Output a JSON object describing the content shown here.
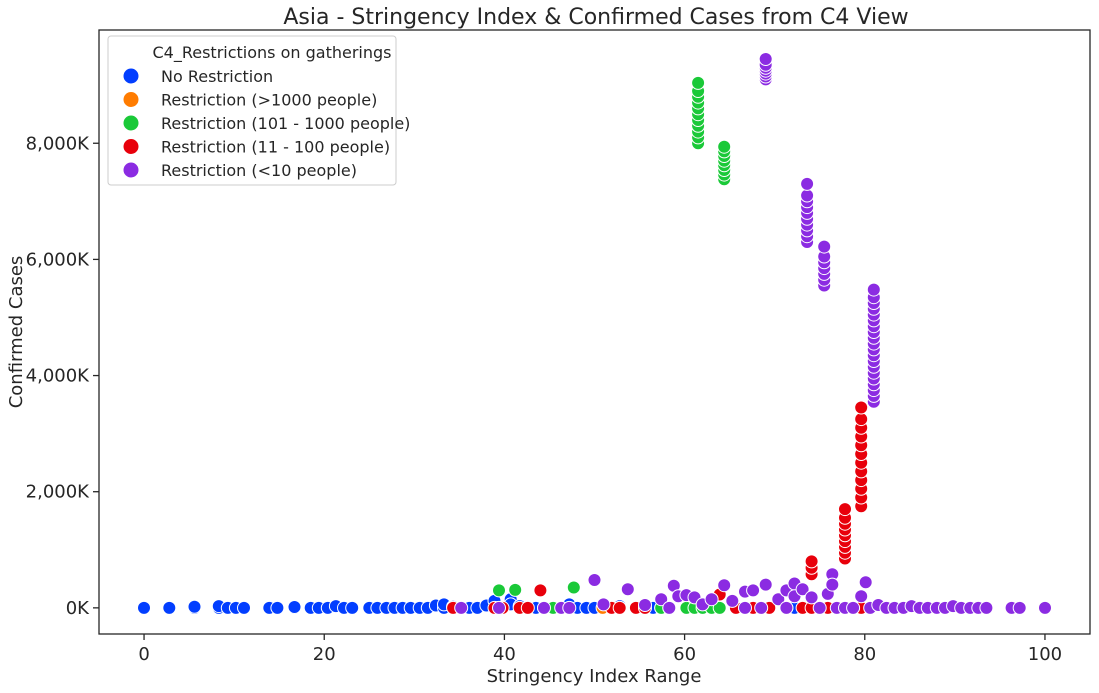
{
  "chart_data": {
    "type": "scatter",
    "title": "Asia - Stringency Index & Confirmed Cases from C4 View",
    "xlabel": "Stringency Index Range",
    "ylabel": "Confirmed Cases",
    "xlim": [
      -5,
      105
    ],
    "ylim": [
      -450000,
      9950000
    ],
    "xticks": [
      0,
      20,
      40,
      60,
      80,
      100
    ],
    "yticks": [
      0,
      2000000,
      4000000,
      6000000,
      8000000
    ],
    "ytick_labels": [
      "0K",
      "2,000K",
      "4,000K",
      "6,000K",
      "8,000K"
    ],
    "grid": false,
    "legend": {
      "title": "C4_Restrictions on gatherings",
      "placement": "top-left"
    },
    "series": [
      {
        "name": "No Restriction",
        "color": "#023eff",
        "points": [
          [
            0,
            0
          ],
          [
            2.8,
            0
          ],
          [
            5.6,
            0
          ],
          [
            5.6,
            20000
          ],
          [
            8.3,
            0
          ],
          [
            8.3,
            30000
          ],
          [
            9.3,
            0
          ],
          [
            10.2,
            0
          ],
          [
            11.1,
            0
          ],
          [
            13.9,
            0
          ],
          [
            14.8,
            0
          ],
          [
            16.7,
            0
          ],
          [
            16.7,
            15000
          ],
          [
            18.5,
            0
          ],
          [
            19.4,
            0
          ],
          [
            20.4,
            0
          ],
          [
            21.3,
            30000
          ],
          [
            22.2,
            0
          ],
          [
            23.1,
            0
          ],
          [
            25.0,
            0
          ],
          [
            25.9,
            0
          ],
          [
            26.9,
            0
          ],
          [
            27.8,
            0
          ],
          [
            28.7,
            0
          ],
          [
            29.6,
            0
          ],
          [
            30.6,
            0
          ],
          [
            31.5,
            0
          ],
          [
            32.4,
            40000
          ],
          [
            33.3,
            0
          ],
          [
            33.3,
            60000
          ],
          [
            34.3,
            20000
          ],
          [
            36.1,
            0
          ],
          [
            37.0,
            0
          ],
          [
            38.0,
            40000
          ],
          [
            38.9,
            120000
          ],
          [
            40.7,
            150000
          ],
          [
            40.7,
            60000
          ],
          [
            41.7,
            30000
          ],
          [
            43.5,
            0
          ],
          [
            44.4,
            0
          ],
          [
            45.4,
            0
          ],
          [
            46.3,
            0
          ],
          [
            47.2,
            60000
          ],
          [
            48.1,
            0
          ],
          [
            49.1,
            0
          ],
          [
            50.0,
            0
          ],
          [
            51.9,
            0
          ],
          [
            52.8,
            30000
          ],
          [
            54.6,
            0
          ],
          [
            55.6,
            0
          ],
          [
            56.5,
            0
          ],
          [
            57.4,
            0
          ],
          [
            58.3,
            0
          ],
          [
            61.1,
            0
          ],
          [
            62.0,
            0
          ],
          [
            63.9,
            0
          ],
          [
            72.2,
            0
          ]
        ]
      },
      {
        "name": "Restriction (>1000 people)",
        "color": "#ff7c00",
        "points": [
          [
            45.4,
            0
          ],
          [
            50.9,
            0
          ]
        ]
      },
      {
        "name": "Restriction (101 - 1000 people)",
        "color": "#1ac938",
        "points": [
          [
            39.4,
            300000
          ],
          [
            41.2,
            310000
          ],
          [
            45.4,
            0
          ],
          [
            47.7,
            350000
          ],
          [
            52.8,
            0
          ],
          [
            57.4,
            0
          ],
          [
            58.3,
            0
          ],
          [
            60.2,
            0
          ],
          [
            61.1,
            0
          ],
          [
            62.0,
            0
          ],
          [
            63.0,
            0
          ],
          [
            63.9,
            0
          ],
          [
            61.5,
            8000000
          ],
          [
            61.5,
            8100000
          ],
          [
            61.5,
            8200000
          ],
          [
            61.5,
            8300000
          ],
          [
            61.5,
            8400000
          ],
          [
            61.5,
            8500000
          ],
          [
            61.5,
            8600000
          ],
          [
            61.5,
            8700000
          ],
          [
            61.5,
            8800000
          ],
          [
            61.5,
            8900000
          ],
          [
            61.5,
            9040000
          ],
          [
            64.4,
            7380000
          ],
          [
            64.4,
            7460000
          ],
          [
            64.4,
            7540000
          ],
          [
            64.4,
            7620000
          ],
          [
            64.4,
            7700000
          ],
          [
            64.4,
            7780000
          ],
          [
            64.4,
            7860000
          ],
          [
            64.4,
            7940000
          ]
        ]
      },
      {
        "name": "Restriction (11 - 100 people)",
        "color": "#e8000b",
        "points": [
          [
            34.3,
            0
          ],
          [
            38.9,
            0
          ],
          [
            39.8,
            0
          ],
          [
            41.7,
            0
          ],
          [
            42.6,
            0
          ],
          [
            44.0,
            300000
          ],
          [
            51.9,
            0
          ],
          [
            52.8,
            0
          ],
          [
            54.6,
            0
          ],
          [
            55.6,
            0
          ],
          [
            63.9,
            230000
          ],
          [
            65.7,
            0
          ],
          [
            66.7,
            0
          ],
          [
            67.6,
            0
          ],
          [
            69.4,
            0
          ],
          [
            71.3,
            0
          ],
          [
            73.1,
            0
          ],
          [
            74.1,
            0
          ],
          [
            74.1,
            580000
          ],
          [
            74.1,
            690000
          ],
          [
            74.1,
            800000
          ],
          [
            75.9,
            0
          ],
          [
            77.8,
            0
          ],
          [
            77.8,
            850000
          ],
          [
            77.8,
            950000
          ],
          [
            77.8,
            1050000
          ],
          [
            77.8,
            1150000
          ],
          [
            77.8,
            1250000
          ],
          [
            77.8,
            1350000
          ],
          [
            77.8,
            1450000
          ],
          [
            77.8,
            1550000
          ],
          [
            77.8,
            1700000
          ],
          [
            79.6,
            0
          ],
          [
            79.6,
            1750000
          ],
          [
            79.6,
            1900000
          ],
          [
            79.6,
            2050000
          ],
          [
            79.6,
            2200000
          ],
          [
            79.6,
            2350000
          ],
          [
            79.6,
            2500000
          ],
          [
            79.6,
            2650000
          ],
          [
            79.6,
            2800000
          ],
          [
            79.6,
            2950000
          ],
          [
            79.6,
            3100000
          ],
          [
            79.6,
            3250000
          ],
          [
            79.6,
            3450000
          ]
        ]
      },
      {
        "name": "Restriction (<10 people)",
        "color": "#8b2be2",
        "points": [
          [
            35.2,
            0
          ],
          [
            39.4,
            0
          ],
          [
            44.4,
            0
          ],
          [
            46.3,
            0
          ],
          [
            47.2,
            0
          ],
          [
            50.0,
            480000
          ],
          [
            51.0,
            60000
          ],
          [
            53.7,
            320000
          ],
          [
            55.6,
            50000
          ],
          [
            57.4,
            150000
          ],
          [
            58.3,
            0
          ],
          [
            58.8,
            380000
          ],
          [
            59.3,
            200000
          ],
          [
            60.2,
            220000
          ],
          [
            61.1,
            180000
          ],
          [
            62.0,
            60000
          ],
          [
            63.0,
            150000
          ],
          [
            64.4,
            390000
          ],
          [
            65.3,
            120000
          ],
          [
            66.7,
            0
          ],
          [
            66.7,
            280000
          ],
          [
            67.6,
            300000
          ],
          [
            68.5,
            0
          ],
          [
            69.0,
            400000
          ],
          [
            70.4,
            150000
          ],
          [
            71.3,
            0
          ],
          [
            71.3,
            300000
          ],
          [
            72.2,
            420000
          ],
          [
            72.2,
            200000
          ],
          [
            73.1,
            320000
          ],
          [
            74.1,
            180000
          ],
          [
            75.0,
            0
          ],
          [
            75.9,
            240000
          ],
          [
            76.9,
            0
          ],
          [
            76.4,
            580000
          ],
          [
            76.4,
            400000
          ],
          [
            77.8,
            0
          ],
          [
            78.7,
            0
          ],
          [
            79.6,
            200000
          ],
          [
            80.1,
            440000
          ],
          [
            80.6,
            0
          ],
          [
            81.5,
            50000
          ],
          [
            82.4,
            0
          ],
          [
            83.3,
            0
          ],
          [
            84.3,
            0
          ],
          [
            85.2,
            30000
          ],
          [
            86.1,
            0
          ],
          [
            87.0,
            0
          ],
          [
            88.0,
            0
          ],
          [
            88.9,
            0
          ],
          [
            89.8,
            30000
          ],
          [
            90.7,
            0
          ],
          [
            91.7,
            0
          ],
          [
            92.6,
            0
          ],
          [
            93.5,
            0
          ],
          [
            96.3,
            0
          ],
          [
            97.2,
            0
          ],
          [
            100,
            0
          ],
          [
            69.0,
            9100000
          ],
          [
            69.0,
            9150000
          ],
          [
            69.0,
            9200000
          ],
          [
            69.0,
            9250000
          ],
          [
            69.0,
            9300000
          ],
          [
            69.0,
            9350000
          ],
          [
            69.0,
            9450000
          ],
          [
            73.6,
            6300000
          ],
          [
            73.6,
            6400000
          ],
          [
            73.6,
            6500000
          ],
          [
            73.6,
            6600000
          ],
          [
            73.6,
            6700000
          ],
          [
            73.6,
            6800000
          ],
          [
            73.6,
            6900000
          ],
          [
            73.6,
            7000000
          ],
          [
            73.6,
            7100000
          ],
          [
            73.6,
            7300000
          ],
          [
            75.5,
            5550000
          ],
          [
            75.5,
            5650000
          ],
          [
            75.5,
            5750000
          ],
          [
            75.5,
            5850000
          ],
          [
            75.5,
            5950000
          ],
          [
            75.5,
            6050000
          ],
          [
            75.5,
            6220000
          ],
          [
            81.0,
            3550000
          ],
          [
            81.0,
            3650000
          ],
          [
            81.0,
            3750000
          ],
          [
            81.0,
            3850000
          ],
          [
            81.0,
            3950000
          ],
          [
            81.0,
            4050000
          ],
          [
            81.0,
            4150000
          ],
          [
            81.0,
            4250000
          ],
          [
            81.0,
            4350000
          ],
          [
            81.0,
            4450000
          ],
          [
            81.0,
            4550000
          ],
          [
            81.0,
            4650000
          ],
          [
            81.0,
            4750000
          ],
          [
            81.0,
            4850000
          ],
          [
            81.0,
            4950000
          ],
          [
            81.0,
            5050000
          ],
          [
            81.0,
            5150000
          ],
          [
            81.0,
            5250000
          ],
          [
            81.0,
            5350000
          ],
          [
            81.0,
            5480000
          ]
        ]
      }
    ]
  }
}
